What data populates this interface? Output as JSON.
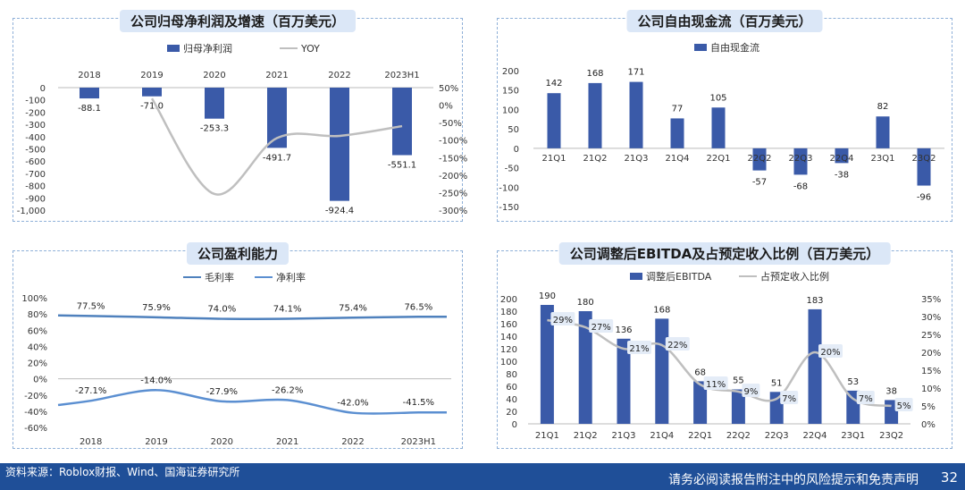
{
  "footer": {
    "source": "资料来源：Roblox财报、Wind、国海证券研究所",
    "disclaimer": "请务必阅读报告附注中的风险提示和免责声明",
    "page": "32"
  },
  "colors": {
    "bar": "#3a5aa8",
    "line_gray": "#bfbfbf",
    "line_blue": "#4f81bd",
    "line_blue2": "#5b8fd1"
  },
  "chart_data": [
    {
      "type": "bar+line",
      "title": "公司归母净利润及增速（百万美元）",
      "categories": [
        "2018",
        "2019",
        "2020",
        "2021",
        "2022",
        "2023H1"
      ],
      "series": [
        {
          "name": "归母净利润",
          "type": "bar",
          "values": [
            -88.1,
            -71.0,
            -253.3,
            -491.7,
            -924.4,
            -551.1
          ],
          "labels": [
            "-88.1",
            "-71.0",
            "-253.3",
            "-491.7",
            "-924.4",
            "-551.1"
          ]
        },
        {
          "name": "YOY",
          "type": "line",
          "values": [
            null,
            19,
            -254,
            -94,
            -88,
            -60
          ]
        }
      ],
      "ylim": [
        -1000,
        0
      ],
      "y_ticks": [
        "0",
        "-100",
        "-200",
        "-300",
        "-400",
        "-500",
        "-600",
        "-700",
        "-800",
        "-900",
        "-1,000"
      ],
      "y2lim": [
        -300,
        50
      ],
      "y2_ticks": [
        "50%",
        "0%",
        "-50%",
        "-100%",
        "-150%",
        "-200%",
        "-250%",
        "-300%"
      ]
    },
    {
      "type": "bar",
      "title": "公司自由现金流（百万美元）",
      "categories": [
        "21Q1",
        "21Q2",
        "21Q3",
        "21Q4",
        "22Q1",
        "22Q2",
        "22Q3",
        "22Q4",
        "23Q1",
        "23Q2"
      ],
      "series": [
        {
          "name": "自由现金流",
          "values": [
            142,
            168,
            171,
            77,
            105,
            -57,
            -68,
            -38,
            82,
            -96
          ]
        }
      ],
      "ylim": [
        -150,
        200
      ],
      "y_ticks": [
        "200",
        "150",
        "100",
        "50",
        "0",
        "-50",
        "-100",
        "-150"
      ]
    },
    {
      "type": "line",
      "title": "公司盈利能力",
      "categories": [
        "2018",
        "2019",
        "2020",
        "2021",
        "2022",
        "2023H1"
      ],
      "series": [
        {
          "name": "毛利率",
          "values": [
            77.5,
            75.9,
            74.0,
            74.1,
            75.4,
            76.5
          ],
          "labels": [
            "77.5%",
            "75.9%",
            "74.0%",
            "74.1%",
            "75.4%",
            "76.5%"
          ]
        },
        {
          "name": "净利率",
          "values": [
            -27.1,
            -14.0,
            -27.9,
            -26.2,
            -42.0,
            -41.5
          ],
          "labels": [
            "-27.1%",
            "-14.0%",
            "-27.9%",
            "-26.2%",
            "-42.0%",
            "-41.5%"
          ]
        }
      ],
      "ylim": [
        -60,
        100
      ],
      "y_ticks": [
        "100%",
        "80%",
        "60%",
        "40%",
        "20%",
        "0%",
        "-20%",
        "-40%",
        "-60%"
      ]
    },
    {
      "type": "bar+line",
      "title": "公司调整后EBITDA及占预定收入比例（百万美元）",
      "categories": [
        "21Q1",
        "21Q2",
        "21Q3",
        "21Q4",
        "22Q1",
        "22Q2",
        "22Q3",
        "22Q4",
        "23Q1",
        "23Q2"
      ],
      "series": [
        {
          "name": "调整后EBITDA",
          "type": "bar",
          "values": [
            190,
            180,
            136,
            168,
            68,
            55,
            51,
            183,
            53,
            38
          ]
        },
        {
          "name": "占预定收入比例",
          "type": "line",
          "values": [
            29,
            27,
            21,
            22,
            11,
            9,
            7,
            20,
            7,
            5
          ],
          "labels": [
            "29%",
            "27%",
            "21%",
            "22%",
            "11%",
            "9%",
            "7%",
            "20%",
            "7%",
            "5%"
          ]
        }
      ],
      "ylim": [
        0,
        200
      ],
      "y_ticks": [
        "200",
        "180",
        "160",
        "140",
        "120",
        "100",
        "80",
        "60",
        "40",
        "20",
        "0"
      ],
      "y2lim": [
        0,
        35
      ],
      "y2_ticks": [
        "35%",
        "30%",
        "25%",
        "20%",
        "15%",
        "10%",
        "5%",
        "0%"
      ]
    }
  ]
}
